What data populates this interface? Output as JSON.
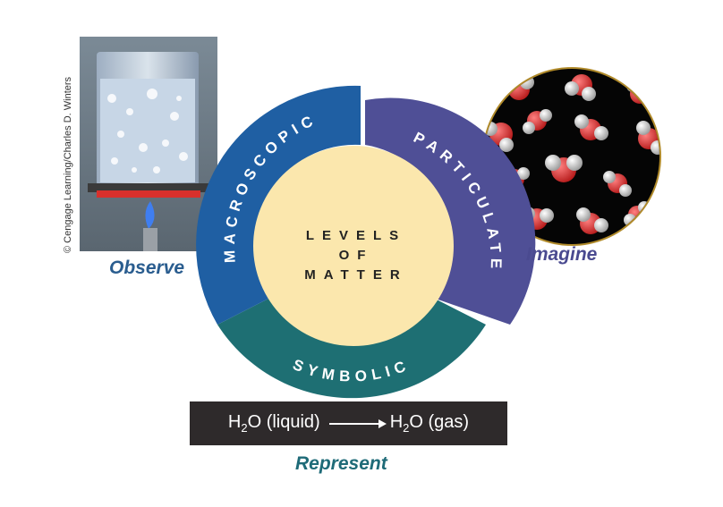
{
  "center": {
    "line1": "LEVELS",
    "line2": "OF",
    "line3": "MATTER"
  },
  "ring": {
    "macroscopic": "MACROSCOPIC",
    "particulate": "PARTICULATE",
    "symbolic": "SYMBOLIC"
  },
  "captions": {
    "observe": "Observe",
    "imagine": "Imagine",
    "represent": "Represent"
  },
  "credit": "© Cengage Learning/Charles D. Winters",
  "equation": {
    "left_formula": "H",
    "left_sub": "2",
    "left_rest": "O (liquid)",
    "right_formula": "H",
    "right_sub": "2",
    "right_rest": "O (gas)"
  },
  "colors": {
    "macroscopic": "#1f5fa3",
    "particulate": "#4f4f96",
    "symbolic": "#1e6f73",
    "center": "#fbe7ad",
    "caption_blue": "#2a5d8f"
  }
}
